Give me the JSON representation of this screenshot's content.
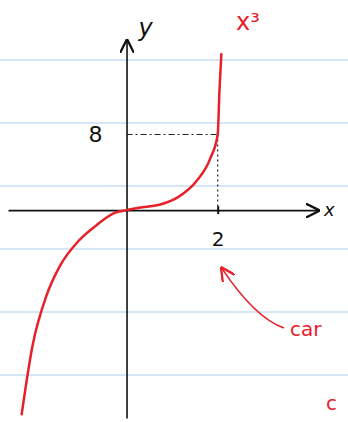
{
  "chart_data": {
    "type": "line",
    "x_label": "x",
    "y_label": "y",
    "x": [
      -2.3,
      -2.06,
      -1.76,
      -1.46,
      -1.06,
      -0.66,
      -0.26,
      0,
      0.34,
      0.74,
      1.14,
      1.54,
      1.84,
      2,
      2.04,
      2.08
    ],
    "values": [
      -21.6,
      -14.3,
      -9.1,
      -5.9,
      -3.3,
      -1.6,
      -0.3,
      0,
      0.3,
      0.6,
      1.4,
      3.1,
      5.5,
      8,
      12.8,
      16.5
    ],
    "color": "#e8202a",
    "xlim": [
      -2.6,
      4.2
    ],
    "ylim": [
      -22,
      18
    ],
    "xticks": [
      2
    ],
    "yticks": [
      8
    ],
    "grid": false,
    "annotations": [
      "x³",
      "car",
      "c"
    ]
  }
}
